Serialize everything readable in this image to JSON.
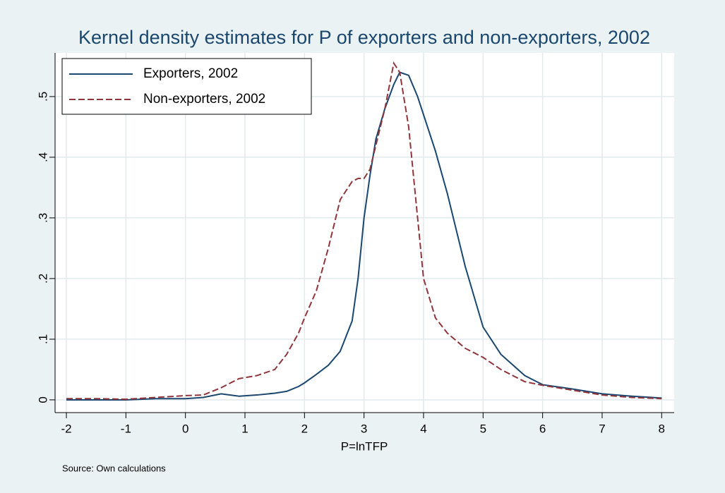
{
  "chart_data": {
    "type": "line",
    "title": "Kernel density estimates for P of exporters and non-exporters, 2002",
    "x_label": "P=lnTFP",
    "note": "Source: Own calculations",
    "x": [
      -2,
      -1.5,
      -1,
      -0.5,
      0,
      0.3,
      0.6,
      0.9,
      1.2,
      1.5,
      1.7,
      1.9,
      2.0,
      2.2,
      2.4,
      2.6,
      2.8,
      2.9,
      3.0,
      3.1,
      3.2,
      3.35,
      3.5,
      3.6,
      3.75,
      3.9,
      4.0,
      4.2,
      4.4,
      4.7,
      5.0,
      5.3,
      5.7,
      6.0,
      6.5,
      7.0,
      7.5,
      8.0
    ],
    "series": [
      {
        "name": "Exporters, 2002",
        "color": "#1a476f",
        "dash": false,
        "values": [
          0,
          0,
          0,
          0.002,
          0.002,
          0.004,
          0.01,
          0.006,
          0.008,
          0.011,
          0.014,
          0.022,
          0.028,
          0.042,
          0.057,
          0.08,
          0.13,
          0.2,
          0.3,
          0.37,
          0.43,
          0.48,
          0.52,
          0.54,
          0.535,
          0.5,
          0.47,
          0.41,
          0.34,
          0.22,
          0.12,
          0.075,
          0.04,
          0.025,
          0.018,
          0.01,
          0.006,
          0.003
        ]
      },
      {
        "name": "Non-exporters, 2002",
        "color": "#90353b",
        "dash": true,
        "values": [
          0.002,
          0.002,
          0.001,
          0.004,
          0.007,
          0.008,
          0.02,
          0.035,
          0.04,
          0.05,
          0.075,
          0.11,
          0.135,
          0.18,
          0.25,
          0.33,
          0.36,
          0.365,
          0.365,
          0.38,
          0.42,
          0.48,
          0.555,
          0.54,
          0.45,
          0.3,
          0.2,
          0.135,
          0.11,
          0.085,
          0.07,
          0.05,
          0.03,
          0.024,
          0.016,
          0.008,
          0.004,
          0.002
        ]
      }
    ],
    "xlim": [
      -2.19,
      8.21
    ],
    "ylim": [
      -0.021,
      0.572
    ],
    "xticks": [
      -2,
      -1,
      0,
      1,
      2,
      3,
      4,
      5,
      6,
      7,
      8
    ],
    "yticks": [
      0,
      {
        "value": 0.1,
        "label": ".1"
      },
      {
        "value": 0.2,
        "label": ".2"
      },
      {
        "value": 0.3,
        "label": ".3"
      },
      {
        "value": 0.4,
        "label": ".4"
      },
      {
        "value": 0.5,
        "label": ".5"
      }
    ],
    "grid": true,
    "legend_position": "top-left"
  }
}
